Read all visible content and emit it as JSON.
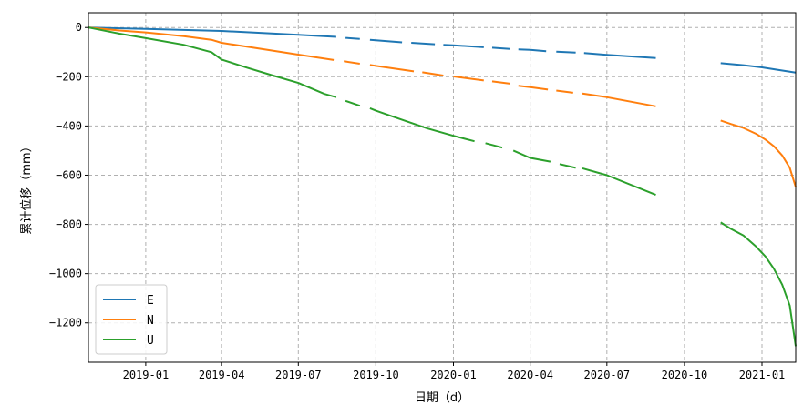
{
  "chart_data": {
    "type": "line",
    "title": "",
    "xlabel": "日期（d）",
    "ylabel": "累计位移（mm）",
    "xlim": [
      "2018-10-25",
      "2021-02-10"
    ],
    "ylim": [
      -1360,
      60
    ],
    "grid": true,
    "legend_position": "lower-left",
    "x_ticks": [
      {
        "date": "2019-01-01",
        "label": "2019-01"
      },
      {
        "date": "2019-04-01",
        "label": "2019-04"
      },
      {
        "date": "2019-07-01",
        "label": "2019-07"
      },
      {
        "date": "2019-10-01",
        "label": "2019-10"
      },
      {
        "date": "2020-01-01",
        "label": "2020-01"
      },
      {
        "date": "2020-04-01",
        "label": "2020-04"
      },
      {
        "date": "2020-07-01",
        "label": "2020-07"
      },
      {
        "date": "2020-10-01",
        "label": "2020-10"
      },
      {
        "date": "2021-01-01",
        "label": "2021-01"
      }
    ],
    "y_ticks": [
      {
        "value": 0,
        "label": "0"
      },
      {
        "value": -200,
        "label": "−200"
      },
      {
        "value": -400,
        "label": "−400"
      },
      {
        "value": -600,
        "label": "−600"
      },
      {
        "value": -800,
        "label": "−800"
      },
      {
        "value": -1000,
        "label": "−1000"
      },
      {
        "value": -1200,
        "label": "−1200"
      }
    ],
    "series": [
      {
        "name": "E",
        "color": "#1f77b4",
        "segments": [
          [
            [
              "2018-10-25",
              0
            ],
            [
              "2019-01-01",
              -6
            ],
            [
              "2019-04-01",
              -14
            ],
            [
              "2019-07-01",
              -30
            ],
            [
              "2019-08-15",
              -38
            ]
          ],
          [
            [
              "2019-08-26",
              -42
            ],
            [
              "2019-09-12",
              -46
            ]
          ],
          [
            [
              "2019-09-24",
              -50
            ],
            [
              "2019-10-01",
              -52
            ],
            [
              "2019-11-01",
              -60
            ]
          ],
          [
            [
              "2019-11-12",
              -62
            ],
            [
              "2019-12-10",
              -68
            ]
          ],
          [
            [
              "2019-12-20",
              -70
            ],
            [
              "2020-01-01",
              -72
            ],
            [
              "2020-02-06",
              -80
            ]
          ],
          [
            [
              "2020-02-16",
              -82
            ],
            [
              "2020-03-08",
              -87
            ]
          ],
          [
            [
              "2020-03-18",
              -89
            ],
            [
              "2020-04-01",
              -91
            ],
            [
              "2020-04-20",
              -96
            ]
          ],
          [
            [
              "2020-05-02",
              -98
            ],
            [
              "2020-05-25",
              -102
            ]
          ],
          [
            [
              "2020-06-04",
              -104
            ],
            [
              "2020-07-01",
              -111
            ],
            [
              "2020-08-28",
              -124
            ]
          ],
          [
            [
              "2020-11-13",
              -145
            ],
            [
              "2020-12-10",
              -153
            ],
            [
              "2021-01-01",
              -162
            ],
            [
              "2021-01-20",
              -172
            ],
            [
              "2021-02-10",
              -183
            ]
          ]
        ]
      },
      {
        "name": "N",
        "color": "#ff7f0e",
        "segments": [
          [
            [
              "2018-10-25",
              0
            ],
            [
              "2018-12-01",
              -12
            ],
            [
              "2019-01-01",
              -20
            ],
            [
              "2019-02-15",
              -35
            ],
            [
              "2019-03-20",
              -50
            ],
            [
              "2019-04-01",
              -62
            ],
            [
              "2019-05-01",
              -78
            ],
            [
              "2019-07-01",
              -110
            ],
            [
              "2019-08-12",
              -132
            ]
          ],
          [
            [
              "2019-08-24",
              -137
            ],
            [
              "2019-09-12",
              -147
            ]
          ],
          [
            [
              "2019-09-24",
              -152
            ],
            [
              "2019-10-01",
              -156
            ],
            [
              "2019-11-15",
              -178
            ]
          ],
          [
            [
              "2019-11-25",
              -182
            ],
            [
              "2019-12-20",
              -195
            ]
          ],
          [
            [
              "2020-01-01",
              -199
            ],
            [
              "2020-02-06",
              -215
            ]
          ],
          [
            [
              "2020-02-16",
              -219
            ],
            [
              "2020-03-08",
              -228
            ]
          ],
          [
            [
              "2020-03-18",
              -237
            ],
            [
              "2020-04-01",
              -242
            ],
            [
              "2020-04-22",
              -252
            ]
          ],
          [
            [
              "2020-05-02",
              -256
            ],
            [
              "2020-05-22",
              -265
            ]
          ],
          [
            [
              "2020-06-02",
              -268
            ],
            [
              "2020-07-01",
              -283
            ],
            [
              "2020-08-28",
              -320
            ]
          ],
          [
            [
              "2020-11-13",
              -378
            ],
            [
              "2020-11-25",
              -392
            ],
            [
              "2020-12-10",
              -408
            ],
            [
              "2020-12-25",
              -432
            ],
            [
              "2021-01-05",
              -455
            ],
            [
              "2021-01-15",
              -482
            ],
            [
              "2021-01-25",
              -520
            ],
            [
              "2021-02-03",
              -570
            ],
            [
              "2021-02-10",
              -648
            ]
          ]
        ]
      },
      {
        "name": "U",
        "color": "#2ca02c",
        "segments": [
          [
            [
              "2018-10-25",
              0
            ],
            [
              "2018-12-01",
              -25
            ],
            [
              "2019-01-01",
              -43
            ],
            [
              "2019-02-15",
              -70
            ],
            [
              "2019-03-20",
              -100
            ],
            [
              "2019-04-01",
              -130
            ],
            [
              "2019-05-01",
              -163
            ],
            [
              "2019-06-01",
              -195
            ],
            [
              "2019-07-01",
              -225
            ],
            [
              "2019-08-01",
              -270
            ],
            [
              "2019-08-15",
              -283
            ]
          ],
          [
            [
              "2019-08-26",
              -298
            ],
            [
              "2019-09-12",
              -318
            ]
          ],
          [
            [
              "2019-09-24",
              -328
            ],
            [
              "2019-10-01",
              -338
            ],
            [
              "2019-11-01",
              -375
            ],
            [
              "2019-12-01",
              -410
            ],
            [
              "2020-01-01",
              -440
            ],
            [
              "2020-01-26",
              -462
            ]
          ],
          [
            [
              "2020-02-08",
              -470
            ],
            [
              "2020-02-28",
              -488
            ]
          ],
          [
            [
              "2020-03-12",
              -500
            ],
            [
              "2020-04-01",
              -530
            ],
            [
              "2020-04-25",
              -545
            ]
          ],
          [
            [
              "2020-05-06",
              -555
            ],
            [
              "2020-05-25",
              -570
            ]
          ],
          [
            [
              "2020-06-02",
              -572
            ],
            [
              "2020-07-01",
              -600
            ],
            [
              "2020-08-28",
              -680
            ]
          ],
          [
            [
              "2020-11-13",
              -792
            ],
            [
              "2020-11-25",
              -818
            ],
            [
              "2020-12-10",
              -845
            ],
            [
              "2020-12-25",
              -890
            ],
            [
              "2021-01-05",
              -930
            ],
            [
              "2021-01-15",
              -980
            ],
            [
              "2021-01-25",
              -1045
            ],
            [
              "2021-02-03",
              -1130
            ],
            [
              "2021-02-10",
              -1295
            ]
          ]
        ]
      }
    ]
  }
}
